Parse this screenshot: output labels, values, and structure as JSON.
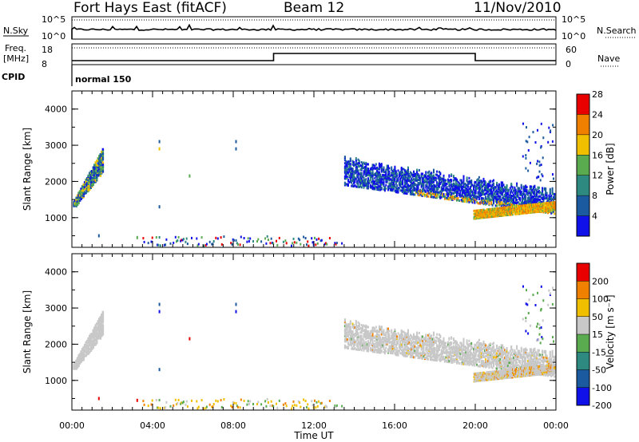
{
  "header": {
    "station": "Fort Hays East (fitACF)",
    "beam": "Beam 12",
    "date": "11/Nov/2010"
  },
  "strip_top": {
    "left_label": "N.Sky",
    "right_label": "N.Search",
    "left_ticks": [
      "10^5",
      "10^0"
    ],
    "right_ticks": [
      "10^5",
      "10^0"
    ]
  },
  "strip_freq": {
    "left_label_1": "Freq.",
    "left_label_2": "[MHz]",
    "right_label": "Nave",
    "left_ticks": [
      "18",
      "8"
    ],
    "right_ticks": [
      "60",
      "0"
    ],
    "freq_steps": [
      {
        "t": 0,
        "freq": 10.5
      },
      {
        "t": 10.0,
        "freq": 15.0
      },
      {
        "t": 20.0,
        "freq": 10.5
      }
    ]
  },
  "cpid": {
    "label": "CPID",
    "mode": "normal 150"
  },
  "chart_data": [
    {
      "type": "heatmap",
      "title": "",
      "ylabel": "Slant Range [km]",
      "ylim": [
        180,
        4500
      ],
      "xlim": [
        0,
        24
      ],
      "yticks": [
        "1000",
        "2000",
        "3000",
        "4000"
      ],
      "colorbar": {
        "label": "Power [dB]",
        "tick_labels": [
          "4",
          "8",
          "12",
          "16",
          "20",
          "24",
          "28"
        ],
        "colors": [
          "#1010e8",
          "#1c5aa0",
          "#2e8a80",
          "#5aaa50",
          "#f0c000",
          "#f08000",
          "#e80000"
        ],
        "range": [
          0,
          30
        ]
      },
      "echo_regions": [
        {
          "t_start": 0.0,
          "t_end": 1.5,
          "range_low": 1200,
          "range_high": 2500,
          "dominant": "green/blue"
        },
        {
          "t_start": 13.5,
          "t_end": 24.0,
          "range_low": 950,
          "range_high": 2700,
          "dominant": "blue"
        },
        {
          "t_start": 20.0,
          "t_end": 24.0,
          "range_low": 950,
          "range_high": 1300,
          "dominant": "yellow/orange"
        },
        {
          "t_start": 4.0,
          "t_end": 13.0,
          "range_low": 200,
          "range_high": 500,
          "dominant": "blue (ground scatter)"
        }
      ]
    },
    {
      "type": "heatmap",
      "title": "",
      "xlabel": "Time UT",
      "ylabel": "Slant Range [km]",
      "ylim": [
        180,
        4500
      ],
      "xlim": [
        0,
        24
      ],
      "xticks": [
        "00:00",
        "04:00",
        "08:00",
        "12:00",
        "16:00",
        "20:00",
        "00:00"
      ],
      "yticks": [
        "1000",
        "2000",
        "3000",
        "4000"
      ],
      "colorbar": {
        "label": "Velocity [m s⁻¹]",
        "tick_labels": [
          "200",
          "100",
          "50",
          "15",
          "-15",
          "-50",
          "-100",
          "-200"
        ],
        "colors": [
          "#1010e8",
          "#1c5aa0",
          "#2e8a80",
          "#5aaa50",
          "#c8c8c8",
          "#f0c000",
          "#f08000",
          "#e80000"
        ],
        "range": [
          -250,
          250
        ]
      },
      "echo_regions": [
        {
          "t_start": 0.0,
          "t_end": 1.5,
          "range_low": 1200,
          "range_high": 2500,
          "dominant": "grey"
        },
        {
          "t_start": 13.5,
          "t_end": 24.0,
          "range_low": 950,
          "range_high": 2700,
          "dominant": "grey"
        },
        {
          "t_start": 4.0,
          "t_end": 13.0,
          "range_low": 200,
          "range_high": 500,
          "dominant": "yellow/orange"
        }
      ]
    }
  ]
}
